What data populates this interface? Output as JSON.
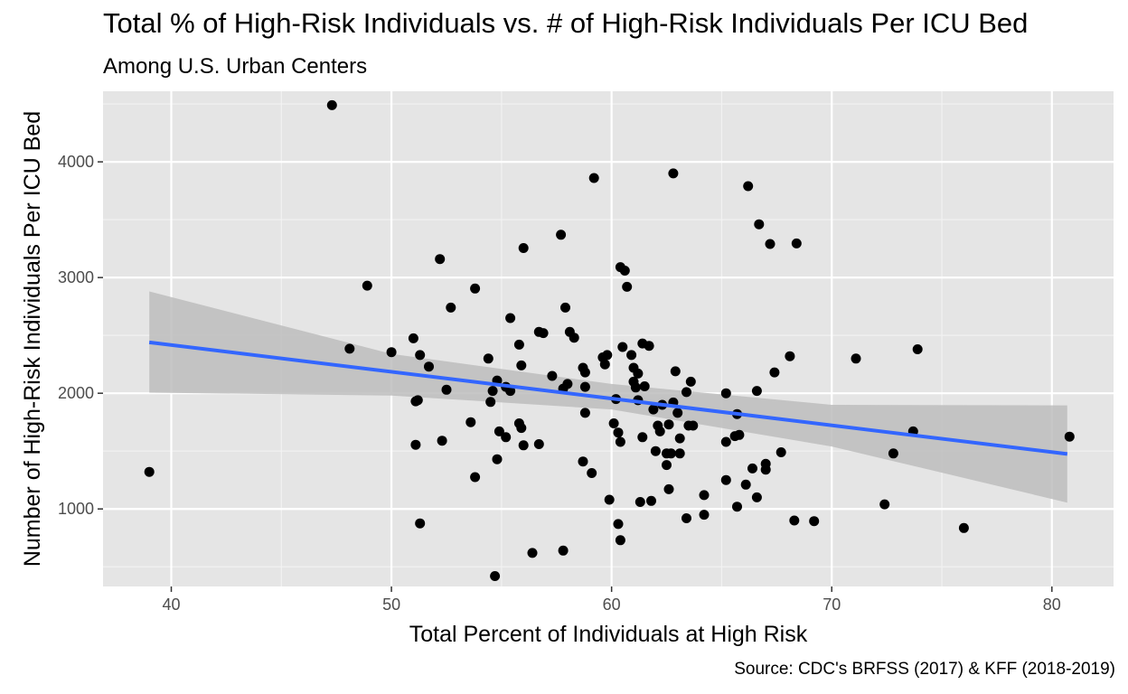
{
  "chart_data": {
    "type": "scatter",
    "title": "Total % of High-Risk Individuals vs. # of High-Risk Individuals Per ICU Bed",
    "subtitle": "Among U.S. Urban Centers",
    "caption": "Source: CDC's BRFSS (2017) & KFF (2018-2019)",
    "xlabel": "Total Percent of Individuals at High Risk",
    "ylabel": "Number of High-Risk Individuals Per ICU Bed",
    "xlim": [
      36.9,
      82.8
    ],
    "ylim": [
      330,
      4610
    ],
    "x_ticks": [
      40,
      50,
      60,
      70,
      80
    ],
    "x_tick_labels": [
      "40",
      "50",
      "60",
      "70",
      "80"
    ],
    "y_ticks": [
      1000,
      2000,
      3000,
      4000
    ],
    "y_tick_labels": [
      "1000",
      "2000",
      "3000",
      "4000"
    ],
    "grid": true,
    "point_color": "#000000",
    "trend_color": "#3366ff",
    "band_color": "#bdbdbd",
    "panel_background": "#e5e5e5",
    "trend": {
      "x_start": 39.0,
      "y_start": 2440,
      "x_end": 80.7,
      "y_end": 1475,
      "band": [
        {
          "x": 39.0,
          "lower": 2005,
          "upper": 2880
        },
        {
          "x": 50.0,
          "lower": 1980,
          "upper": 2340
        },
        {
          "x": 60.0,
          "lower": 1860,
          "upper": 2080
        },
        {
          "x": 70.0,
          "lower": 1540,
          "upper": 1900
        },
        {
          "x": 80.7,
          "lower": 1055,
          "upper": 1895
        }
      ]
    },
    "points": [
      [
        39.0,
        1320
      ],
      [
        47.3,
        4490
      ],
      [
        48.1,
        2385
      ],
      [
        48.9,
        2930
      ],
      [
        50.0,
        2355
      ],
      [
        51.0,
        2475
      ],
      [
        51.1,
        1930
      ],
      [
        51.1,
        1555
      ],
      [
        51.2,
        1940
      ],
      [
        51.3,
        2330
      ],
      [
        51.3,
        875
      ],
      [
        51.7,
        2230
      ],
      [
        52.2,
        3160
      ],
      [
        52.3,
        1590
      ],
      [
        52.5,
        2030
      ],
      [
        52.7,
        2740
      ],
      [
        53.6,
        1750
      ],
      [
        53.8,
        1275
      ],
      [
        53.8,
        2905
      ],
      [
        54.4,
        2300
      ],
      [
        54.5,
        1925
      ],
      [
        54.6,
        2020
      ],
      [
        54.7,
        420
      ],
      [
        54.8,
        2110
      ],
      [
        54.8,
        1430
      ],
      [
        54.9,
        1670
      ],
      [
        55.2,
        1620
      ],
      [
        55.2,
        2055
      ],
      [
        55.4,
        2650
      ],
      [
        55.4,
        2020
      ],
      [
        55.8,
        1740
      ],
      [
        55.8,
        2420
      ],
      [
        55.9,
        2240
      ],
      [
        55.9,
        1700
      ],
      [
        56.0,
        3255
      ],
      [
        56.0,
        1550
      ],
      [
        56.4,
        620
      ],
      [
        56.7,
        2530
      ],
      [
        56.7,
        1560
      ],
      [
        56.9,
        2520
      ],
      [
        57.3,
        2150
      ],
      [
        57.7,
        3370
      ],
      [
        57.8,
        2040
      ],
      [
        57.8,
        640
      ],
      [
        57.9,
        2740
      ],
      [
        58.0,
        2080
      ],
      [
        58.1,
        2530
      ],
      [
        58.3,
        2480
      ],
      [
        58.7,
        2220
      ],
      [
        58.7,
        1410
      ],
      [
        58.8,
        2180
      ],
      [
        58.8,
        2055
      ],
      [
        58.8,
        1830
      ],
      [
        59.1,
        1310
      ],
      [
        59.2,
        3860
      ],
      [
        59.6,
        2310
      ],
      [
        59.7,
        2250
      ],
      [
        59.8,
        2330
      ],
      [
        59.9,
        1080
      ],
      [
        60.1,
        1740
      ],
      [
        60.2,
        1950
      ],
      [
        60.3,
        1660
      ],
      [
        60.3,
        870
      ],
      [
        60.4,
        1580
      ],
      [
        60.4,
        3090
      ],
      [
        60.4,
        730
      ],
      [
        60.5,
        2400
      ],
      [
        60.6,
        3060
      ],
      [
        60.7,
        2920
      ],
      [
        60.9,
        2330
      ],
      [
        61.0,
        2220
      ],
      [
        61.0,
        2100
      ],
      [
        61.1,
        2050
      ],
      [
        61.2,
        1940
      ],
      [
        61.2,
        2170
      ],
      [
        61.3,
        1060
      ],
      [
        61.4,
        2430
      ],
      [
        61.4,
        1620
      ],
      [
        61.5,
        2060
      ],
      [
        61.7,
        2410
      ],
      [
        61.8,
        1070
      ],
      [
        61.9,
        1860
      ],
      [
        62.0,
        1500
      ],
      [
        62.1,
        1720
      ],
      [
        62.2,
        1670
      ],
      [
        62.3,
        1900
      ],
      [
        62.5,
        1380
      ],
      [
        62.5,
        1480
      ],
      [
        62.6,
        1170
      ],
      [
        62.6,
        1730
      ],
      [
        62.7,
        1480
      ],
      [
        62.8,
        3900
      ],
      [
        62.8,
        1920
      ],
      [
        62.9,
        2190
      ],
      [
        63.0,
        1830
      ],
      [
        63.1,
        1480
      ],
      [
        63.1,
        1610
      ],
      [
        63.4,
        920
      ],
      [
        63.4,
        2010
      ],
      [
        63.5,
        1720
      ],
      [
        63.6,
        2100
      ],
      [
        63.7,
        1720
      ],
      [
        64.2,
        1120
      ],
      [
        64.2,
        950
      ],
      [
        65.2,
        1250
      ],
      [
        65.2,
        1580
      ],
      [
        65.2,
        2000
      ],
      [
        65.6,
        1630
      ],
      [
        65.7,
        1020
      ],
      [
        65.7,
        1820
      ],
      [
        65.8,
        1640
      ],
      [
        66.1,
        1210
      ],
      [
        66.2,
        3790
      ],
      [
        66.4,
        1350
      ],
      [
        66.6,
        1100
      ],
      [
        66.6,
        2020
      ],
      [
        66.7,
        3460
      ],
      [
        67.0,
        1390
      ],
      [
        67.0,
        1340
      ],
      [
        67.2,
        3290
      ],
      [
        67.4,
        2180
      ],
      [
        67.7,
        1490
      ],
      [
        68.1,
        2320
      ],
      [
        68.3,
        900
      ],
      [
        68.4,
        3295
      ],
      [
        69.2,
        895
      ],
      [
        71.1,
        2300
      ],
      [
        72.4,
        1040
      ],
      [
        72.8,
        1480
      ],
      [
        73.7,
        1670
      ],
      [
        73.9,
        2380
      ],
      [
        76.0,
        835
      ],
      [
        80.8,
        1625
      ]
    ]
  }
}
